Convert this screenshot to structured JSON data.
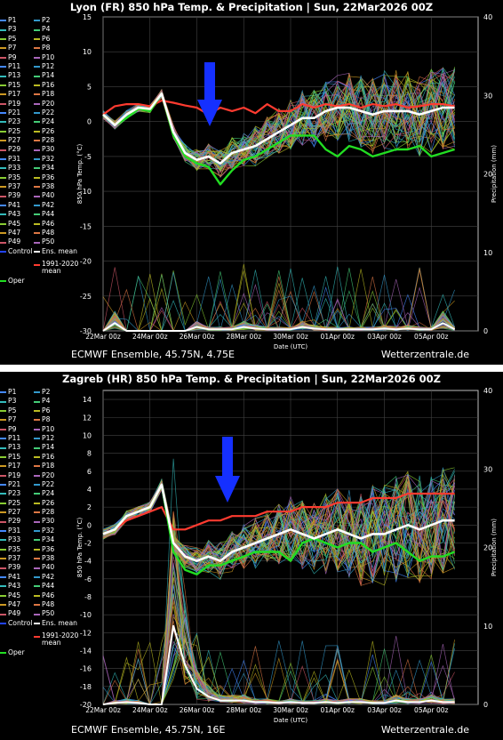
{
  "chart_data": [
    {
      "type": "line",
      "title": "Lyon  (FR)  850 hPa Temp. & Precipitation | Sun, 22Mar2026 00Z",
      "footer_left": "ECMWF Ensemble, 45.75N, 4.75E",
      "footer_right": "Wetterzentrale.de",
      "xlabel": "Date (UTC)",
      "ylabel": "850 hPa Temp. (°C)",
      "ylabel_right": "Precipitation (mm)",
      "ylim": [
        -30,
        15
      ],
      "ylim_right": [
        0,
        40
      ],
      "yticks": [
        "15",
        "10",
        "5",
        "0",
        "-5",
        "-10",
        "-15",
        "-20",
        "-25",
        "-30"
      ],
      "yticks_right": [
        "40",
        "30",
        "20",
        "10",
        "0"
      ],
      "xticks": [
        "22Mar 00z",
        "24Mar 00z",
        "26Mar 00z",
        "28Mar 00z",
        "30Mar 00z",
        "01Apr 00z",
        "03Apr 00z",
        "05Apr 00z"
      ],
      "grid": true,
      "legend_position": "left",
      "x_hours": [
        0,
        12,
        24,
        36,
        48,
        60,
        72,
        84,
        96,
        108,
        120,
        132,
        144,
        156,
        168,
        180,
        192,
        204,
        216,
        228,
        240,
        252,
        264,
        276,
        288,
        300,
        312,
        324,
        336,
        348,
        360
      ],
      "series": [
        {
          "name": "Ens. mean",
          "values": [
            1,
            -0.5,
            1,
            2,
            1.8,
            4,
            -1.5,
            -4.5,
            -5.5,
            -5,
            -6,
            -4.5,
            -4,
            -3.5,
            -2.5,
            -1.5,
            -0.5,
            0.5,
            0.5,
            1.5,
            2,
            2,
            1.5,
            1,
            1.5,
            1.5,
            1.5,
            1,
            1.5,
            2,
            2
          ]
        },
        {
          "name": "1991-2020 mean",
          "values": [
            1,
            2.2,
            2.5,
            2.5,
            2.2,
            3,
            2.7,
            2.3,
            2,
            1,
            2,
            1.5,
            2,
            1.2,
            2.5,
            1.5,
            1.5,
            2.5,
            2,
            2.5,
            2.2,
            2.5,
            2,
            2.5,
            2.2,
            2.5,
            2,
            2.2,
            2.5,
            2.5,
            2.2
          ]
        },
        {
          "name": "Oper",
          "values": [
            1,
            -0.5,
            0.5,
            1.8,
            1.5,
            4,
            -2,
            -5,
            -6,
            -6.5,
            -9,
            -7,
            -5.5,
            -5,
            -4,
            -3,
            -2,
            -2,
            -2,
            -4,
            -5,
            -3.5,
            -4,
            -5,
            -4.5,
            -4,
            -4,
            -3.5,
            -5,
            -4.5,
            -4
          ]
        }
      ],
      "precip_mean_mm": [
        0,
        1,
        0,
        0,
        0,
        0,
        0,
        0,
        0.5,
        0.2,
        0.2,
        0.2,
        0.5,
        0.3,
        0.2,
        0.2,
        0.2,
        0.5,
        0.3,
        0.2,
        0.2,
        0.2,
        0.2,
        0.2,
        0.3,
        0.2,
        0.3,
        0.2,
        0.2,
        1,
        0.2
      ]
    },
    {
      "type": "line",
      "title": "Zagreb  (HR)  850 hPa Temp. & Precipitation | Sun, 22Mar2026 00Z",
      "footer_left": "ECMWF Ensemble, 45.75N, 16E",
      "footer_right": "Wetterzentrale.de",
      "xlabel": "Date (UTC)",
      "ylabel": "850 hPa Temp. (°C)",
      "ylabel_right": "Precipitation (mm)",
      "ylim": [
        -20,
        15
      ],
      "ylim_right": [
        0,
        40
      ],
      "yticks": [
        "14",
        "12",
        "10",
        "8",
        "6",
        "4",
        "2",
        "0",
        "-2",
        "-4",
        "-6",
        "-8",
        "-10",
        "-12",
        "-14",
        "-16",
        "-18",
        "-20"
      ],
      "yticks_right": [
        "40",
        "30",
        "20",
        "10",
        "0"
      ],
      "xticks": [
        "22Mar 00z",
        "24Mar 00z",
        "26Mar 00z",
        "28Mar 00z",
        "30Mar 00z",
        "01Apr 00z",
        "03Apr 00z",
        "05Apr 00z"
      ],
      "grid": true,
      "legend_position": "left",
      "x_hours": [
        0,
        12,
        24,
        36,
        48,
        60,
        72,
        84,
        96,
        108,
        120,
        132,
        144,
        156,
        168,
        180,
        192,
        204,
        216,
        228,
        240,
        252,
        264,
        276,
        288,
        300,
        312,
        324,
        336,
        348,
        360
      ],
      "series": [
        {
          "name": "Ens. mean",
          "values": [
            -1,
            -0.5,
            1,
            1.5,
            2,
            4.5,
            -2,
            -3.5,
            -4,
            -3.5,
            -4,
            -3,
            -2.5,
            -2,
            -1.5,
            -1,
            -0.5,
            -1,
            -1.5,
            -1,
            -0.5,
            -1,
            -1.5,
            -1,
            -1,
            -0.5,
            0,
            -0.5,
            0,
            0.5,
            0.5
          ]
        },
        {
          "name": "1991-2020 mean",
          "values": [
            -1,
            -0.5,
            0.5,
            1,
            1.5,
            2,
            -0.5,
            -0.5,
            0,
            0.5,
            0.5,
            1,
            1,
            1,
            1.5,
            1.5,
            1.5,
            2,
            2,
            2,
            2.5,
            2.5,
            2.5,
            3,
            3,
            3,
            3.5,
            3.5,
            3.5,
            3.5,
            3.5
          ]
        },
        {
          "name": "Oper",
          "values": [
            -1,
            -0.5,
            1,
            1.5,
            2,
            4.5,
            -3,
            -5,
            -5.5,
            -4.5,
            -4.5,
            -4,
            -3.5,
            -3,
            -3,
            -3,
            -4,
            -2,
            -1.5,
            -2,
            -2.5,
            -2,
            -2,
            -3,
            -2.5,
            -2,
            -3,
            -4,
            -3.5,
            -3.5,
            -3
          ]
        }
      ],
      "precip_mean_mm": [
        0,
        0.2,
        0.3,
        0.2,
        0,
        0,
        10,
        5,
        2,
        1,
        0.5,
        0.5,
        0.5,
        0.3,
        0.3,
        0.2,
        0.3,
        0.2,
        0.2,
        0.3,
        0.2,
        0.3,
        0.3,
        0.2,
        0.2,
        0.5,
        0.3,
        0.3,
        0.5,
        0.3,
        0.3
      ]
    }
  ],
  "legend": {
    "members": [
      "P1",
      "P2",
      "P3",
      "P4",
      "P5",
      "P6",
      "P7",
      "P8",
      "P9",
      "P10",
      "P11",
      "P12",
      "P13",
      "P14",
      "P15",
      "P16",
      "P17",
      "P18",
      "P19",
      "P20",
      "P21",
      "P22",
      "P23",
      "P24",
      "P25",
      "P26",
      "P27",
      "P28",
      "P29",
      "P30",
      "P31",
      "P32",
      "P33",
      "P34",
      "P35",
      "P36",
      "P37",
      "P38",
      "P39",
      "P40",
      "P41",
      "P42",
      "P43",
      "P44",
      "P45",
      "P46",
      "P47",
      "P48",
      "P49",
      "P50"
    ],
    "control": "Control",
    "ens_mean": "Ens. mean",
    "clim_line1": "1991-2020",
    "clim_line2": "mean",
    "oper": "Oper"
  },
  "colors": {
    "background": "#000000",
    "ens_mean": "#ffffff",
    "climatology": "#ff3b30",
    "oper": "#22dd22",
    "control": "#2244ff",
    "arrow": "#1530ff"
  }
}
